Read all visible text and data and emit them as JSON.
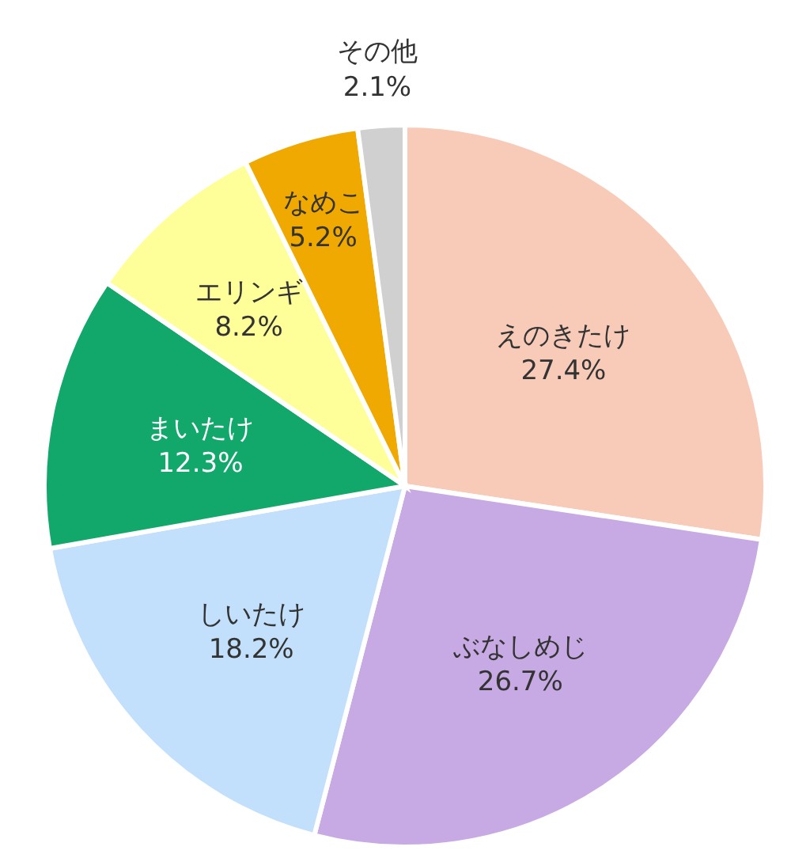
{
  "chart_data": {
    "type": "pie",
    "categories": [
      "えのきたけ",
      "ぶなしめじ",
      "しいたけ",
      "まいたけ",
      "エリンギ",
      "なめこ",
      "その他"
    ],
    "values": [
      27.4,
      26.7,
      18.2,
      12.3,
      8.2,
      5.2,
      2.1
    ],
    "value_labels": [
      "27.4%",
      "26.7%",
      "18.2%",
      "12.3%",
      "8.2%",
      "5.2%",
      "2.1%"
    ],
    "colors": [
      "#f8cbb9",
      "#c7a9e3",
      "#c2e0fb",
      "#13a86b",
      "#ffff99",
      "#f0a900",
      "#d0d0d0"
    ]
  }
}
